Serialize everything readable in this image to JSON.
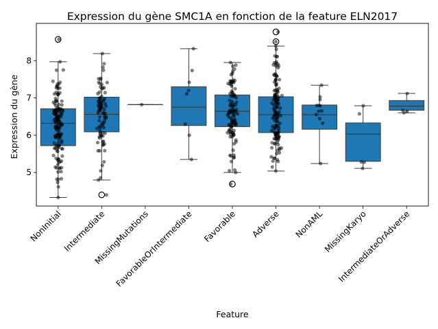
{
  "chart_data": {
    "type": "box",
    "title": "Expression du gène SMC1A en fonction de la feature ELN2017",
    "xlabel": "Feature",
    "ylabel": "Expression du gène",
    "categories": [
      "NonInitial",
      "Intermediate",
      "MissingMutations",
      "FavorableOrIntermediate",
      "Favorable",
      "Adverse",
      "NonAML",
      "MissingKaryo",
      "IntermediateOrAdverse"
    ],
    "yticks": [
      5,
      6,
      7,
      8
    ],
    "ylim": [
      4.1,
      9.0
    ],
    "color": "#1f77b4",
    "boxes": [
      {
        "name": "NonInitial",
        "min": 4.33,
        "q1": 5.72,
        "median": 6.32,
        "q3": 6.71,
        "max": 7.97,
        "outliers": [
          8.57
        ],
        "n_points": 150
      },
      {
        "name": "Intermediate",
        "min": 4.8,
        "q1": 6.09,
        "median": 6.56,
        "q3": 7.02,
        "max": 8.19,
        "outliers": [
          4.4
        ],
        "n_points": 90
      },
      {
        "name": "MissingMutations",
        "min": 6.82,
        "q1": 6.82,
        "median": 6.82,
        "q3": 6.82,
        "max": 6.82,
        "outliers": [],
        "n_points": 1
      },
      {
        "name": "FavorableOrIntermediate",
        "min": 5.35,
        "q1": 6.26,
        "median": 6.75,
        "q3": 7.3,
        "max": 8.32,
        "outliers": [],
        "n_points": 8
      },
      {
        "name": "Favorable",
        "min": 5.0,
        "q1": 6.23,
        "median": 6.64,
        "q3": 7.08,
        "max": 7.95,
        "outliers": [
          4.69
        ],
        "n_points": 110
      },
      {
        "name": "Adverse",
        "min": 5.04,
        "q1": 6.07,
        "median": 6.55,
        "q3": 7.03,
        "max": 8.39,
        "outliers": [
          8.51,
          8.77
        ],
        "n_points": 140
      },
      {
        "name": "NonAML",
        "min": 5.24,
        "q1": 6.16,
        "median": 6.55,
        "q3": 6.81,
        "max": 7.34,
        "outliers": [],
        "n_points": 12
      },
      {
        "name": "MissingKaryo",
        "min": 5.11,
        "q1": 5.3,
        "median": 6.03,
        "q3": 6.33,
        "max": 6.79,
        "outliers": [],
        "n_points": 5
      },
      {
        "name": "IntermediateOrAdverse",
        "min": 6.6,
        "q1": 6.67,
        "median": 6.78,
        "q3": 6.93,
        "max": 7.12,
        "outliers": [],
        "n_points": 4
      }
    ]
  }
}
